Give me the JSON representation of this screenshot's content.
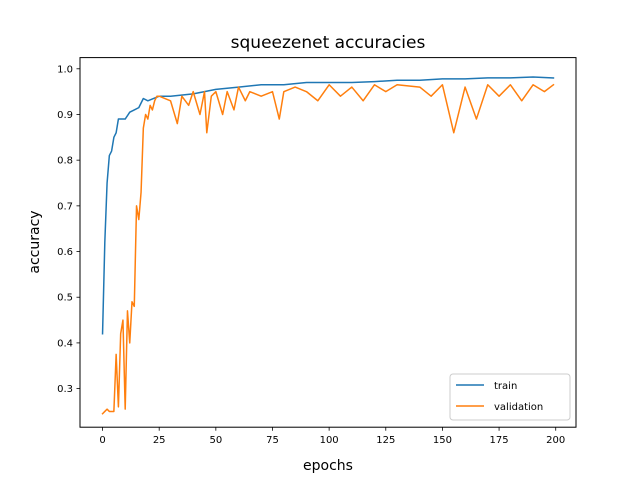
{
  "chart_data": {
    "type": "line",
    "title": "squeezenet accuracies",
    "xlabel": "epochs",
    "ylabel": "accuracy",
    "xlim": [
      -9.95,
      208.95
    ],
    "ylim": [
      0.2155,
      1.0245
    ],
    "xticks": [
      0,
      25,
      50,
      75,
      100,
      125,
      150,
      175,
      200
    ],
    "yticks": [
      0.3,
      0.4,
      0.5,
      0.6,
      0.7,
      0.8,
      0.9,
      1.0
    ],
    "ytick_labels": [
      "0.3",
      "0.4",
      "0.5",
      "0.6",
      "0.7",
      "0.8",
      "0.9",
      "1.0"
    ],
    "grid": false,
    "legend_position": "lower right",
    "series": [
      {
        "name": "train",
        "color": "#1f77b4",
        "x": [
          0,
          1,
          2,
          3,
          4,
          5,
          6,
          7,
          8,
          10,
          12,
          14,
          16,
          18,
          20,
          25,
          30,
          40,
          50,
          60,
          70,
          80,
          90,
          100,
          110,
          120,
          130,
          140,
          150,
          160,
          170,
          180,
          190,
          199
        ],
        "y": [
          0.42,
          0.62,
          0.75,
          0.81,
          0.82,
          0.85,
          0.86,
          0.89,
          0.89,
          0.89,
          0.905,
          0.91,
          0.915,
          0.935,
          0.93,
          0.94,
          0.94,
          0.945,
          0.955,
          0.96,
          0.965,
          0.965,
          0.97,
          0.97,
          0.97,
          0.972,
          0.975,
          0.975,
          0.978,
          0.978,
          0.98,
          0.98,
          0.982,
          0.98
        ]
      },
      {
        "name": "validation",
        "color": "#ff7f0e",
        "x": [
          0,
          1,
          2,
          3,
          4,
          5,
          6,
          7,
          8,
          9,
          10,
          11,
          12,
          13,
          14,
          15,
          16,
          17,
          18,
          19,
          20,
          21,
          22,
          23,
          24,
          25,
          30,
          33,
          35,
          38,
          40,
          43,
          45,
          46,
          48,
          50,
          53,
          55,
          58,
          60,
          63,
          65,
          70,
          75,
          78,
          80,
          85,
          90,
          95,
          100,
          105,
          110,
          115,
          120,
          125,
          130,
          140,
          145,
          150,
          155,
          160,
          165,
          170,
          175,
          180,
          185,
          190,
          195,
          199
        ],
        "y": [
          0.245,
          0.25,
          0.255,
          0.25,
          0.25,
          0.25,
          0.375,
          0.26,
          0.42,
          0.45,
          0.255,
          0.47,
          0.4,
          0.49,
          0.48,
          0.7,
          0.67,
          0.73,
          0.87,
          0.9,
          0.89,
          0.92,
          0.91,
          0.93,
          0.94,
          0.94,
          0.93,
          0.88,
          0.94,
          0.92,
          0.95,
          0.9,
          0.95,
          0.86,
          0.94,
          0.95,
          0.9,
          0.95,
          0.91,
          0.96,
          0.93,
          0.95,
          0.94,
          0.95,
          0.89,
          0.95,
          0.96,
          0.95,
          0.93,
          0.965,
          0.94,
          0.96,
          0.93,
          0.965,
          0.95,
          0.965,
          0.96,
          0.94,
          0.965,
          0.86,
          0.96,
          0.89,
          0.965,
          0.94,
          0.965,
          0.93,
          0.965,
          0.95,
          0.965
        ]
      }
    ]
  }
}
